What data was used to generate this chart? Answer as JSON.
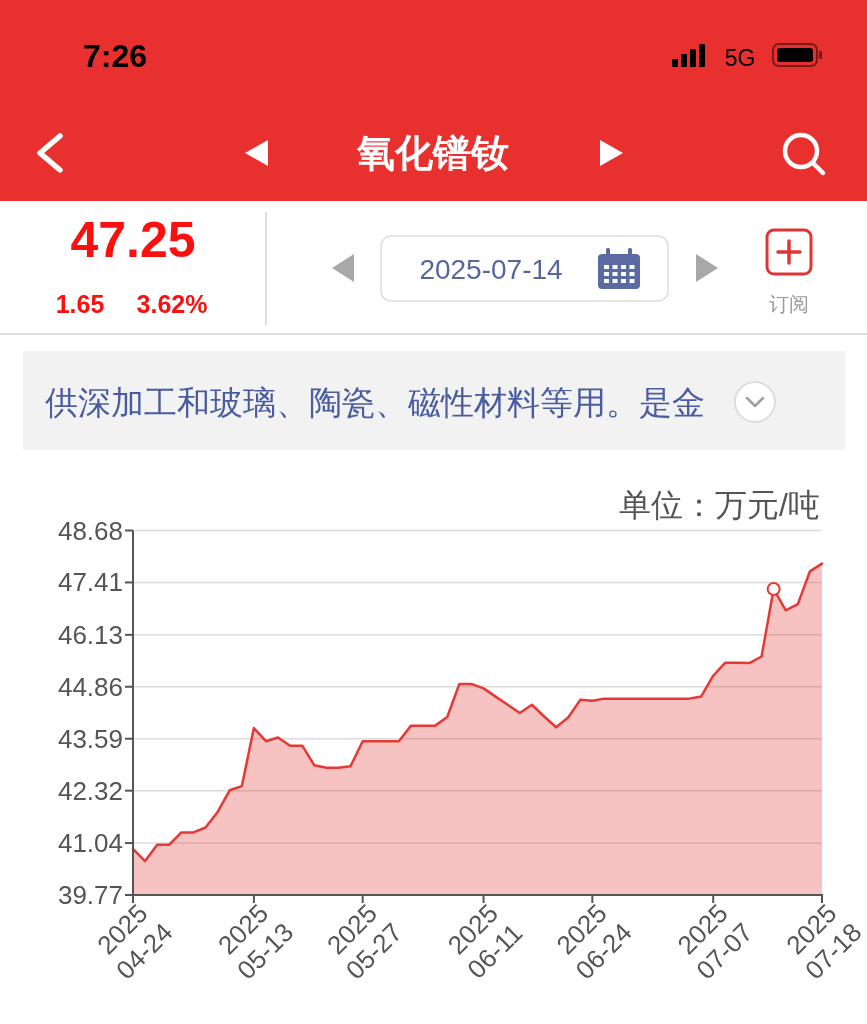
{
  "chart_data": {
    "type": "area",
    "title": "氧化镨钕",
    "ylabel": "单位：万元/吨",
    "categories": [
      "2025\n04-24",
      null,
      null,
      null,
      null,
      null,
      null,
      null,
      null,
      null,
      "2025\n05-13",
      null,
      null,
      null,
      null,
      null,
      null,
      null,
      null,
      "2025\n05-27",
      null,
      null,
      null,
      null,
      null,
      null,
      null,
      null,
      null,
      "2025\n06-11",
      null,
      null,
      null,
      null,
      null,
      null,
      null,
      null,
      "2025\n06-24",
      null,
      null,
      null,
      null,
      null,
      null,
      null,
      null,
      null,
      "2025\n07-07",
      null,
      null,
      null,
      null,
      null,
      null,
      null,
      null,
      "2025\n07-18"
    ],
    "series": [
      {
        "color": "#e53935",
        "marker": "none",
        "values": [
          40.9,
          40.6,
          41.0,
          41.0,
          41.3,
          41.3,
          41.42,
          41.8,
          42.33,
          42.43,
          43.85,
          43.53,
          43.62,
          43.42,
          43.42,
          42.94,
          42.88,
          42.88,
          42.92,
          43.53,
          43.53,
          43.53,
          43.53,
          43.91,
          43.91,
          43.91,
          44.12,
          44.93,
          44.93,
          44.82,
          44.62,
          44.42,
          44.22,
          44.42,
          44.14,
          43.87,
          44.11,
          44.54,
          44.52,
          44.57,
          44.57,
          44.57,
          44.57,
          44.57,
          44.57,
          44.57,
          44.57,
          44.62,
          45.13,
          45.45,
          45.45,
          45.44,
          45.6,
          47.25,
          46.73,
          46.88,
          47.68,
          47.87
        ]
      },
      {
        "type": "scatter",
        "color": "#e53935",
        "marker": "circle",
        "values": [
          null,
          null,
          null,
          null,
          null,
          null,
          null,
          null,
          null,
          null,
          null,
          null,
          null,
          null,
          null,
          null,
          null,
          null,
          null,
          null,
          null,
          null,
          null,
          null,
          null,
          null,
          null,
          null,
          null,
          null,
          null,
          null,
          null,
          null,
          null,
          null,
          null,
          null,
          null,
          null,
          null,
          null,
          null,
          null,
          null,
          null,
          null,
          null,
          null,
          null,
          null,
          null,
          null,
          47.25,
          null,
          null,
          null,
          null
        ]
      }
    ],
    "ylim": [
      39.77,
      48.68
    ],
    "yticks": [
      39.77,
      41.04,
      42.32,
      43.59,
      44.86,
      46.13,
      47.41,
      48.68
    ],
    "grid": "y",
    "annotations": [
      "7:26",
      "5G",
      "47.25",
      "1.65",
      "3.62%",
      "2025-07-14",
      "订阅",
      "供深加工和玻璃、陶瓷、磁性材料等用。是金"
    ]
  }
}
